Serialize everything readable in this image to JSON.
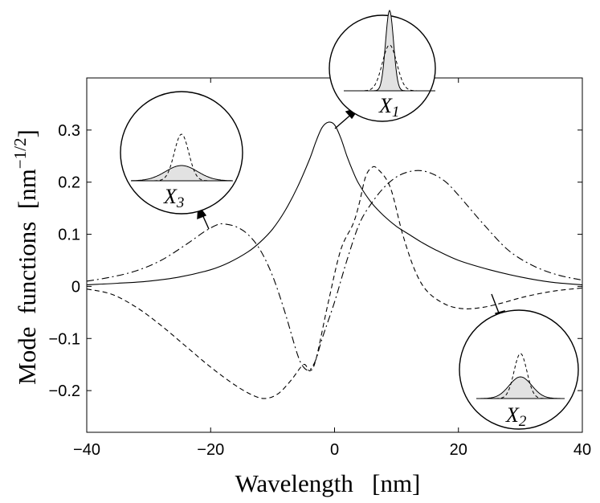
{
  "chart_data": {
    "type": "line",
    "xlabel": "Wavelength   [nm]",
    "ylabel_main": "Mode  functions  [nm",
    "ylabel_exp": "−1/2",
    "ylabel_close": "]",
    "xlim": [
      -40,
      40
    ],
    "ylim": [
      -0.28,
      0.4
    ],
    "grid": false,
    "x_ticks": [
      {
        "value": -40,
        "label": "−40"
      },
      {
        "value": -20,
        "label": "−20"
      },
      {
        "value": 0,
        "label": "0"
      },
      {
        "value": 20,
        "label": "20"
      },
      {
        "value": 40,
        "label": "40"
      }
    ],
    "y_ticks": [
      {
        "value": -0.2,
        "label": "−0.2"
      },
      {
        "value": -0.1,
        "label": "−0.1"
      },
      {
        "value": 0,
        "label": "0"
      },
      {
        "value": 0.1,
        "label": "0.1"
      },
      {
        "value": 0.2,
        "label": "0.2"
      },
      {
        "value": 0.3,
        "label": "0.3"
      }
    ],
    "series": [
      {
        "style": "solid",
        "x": [
          -40,
          -35,
          -30,
          -25,
          -20,
          -17,
          -14,
          -12,
          -10,
          -8,
          -6,
          -4,
          -3,
          -2,
          -1,
          0,
          1,
          2,
          3,
          4,
          6,
          8,
          10,
          12,
          14,
          16,
          20,
          25,
          30,
          35,
          40
        ],
        "y": [
          0.003,
          0.006,
          0.01,
          0.018,
          0.032,
          0.046,
          0.066,
          0.085,
          0.11,
          0.145,
          0.19,
          0.245,
          0.278,
          0.305,
          0.315,
          0.31,
          0.285,
          0.25,
          0.22,
          0.195,
          0.16,
          0.135,
          0.115,
          0.1,
          0.085,
          0.072,
          0.05,
          0.032,
          0.018,
          0.008,
          0.003
        ]
      },
      {
        "style": "dashed",
        "x": [
          -40,
          -36,
          -32,
          -28,
          -24,
          -20,
          -16,
          -13,
          -11,
          -9,
          -7,
          -5,
          -4,
          -3,
          -1,
          1,
          3,
          4,
          5,
          6,
          7,
          9,
          11,
          13,
          15,
          18,
          21,
          24,
          27,
          30,
          33,
          36,
          40
        ],
        "y": [
          -0.005,
          -0.015,
          -0.04,
          -0.075,
          -0.115,
          -0.155,
          -0.19,
          -0.21,
          -0.215,
          -0.205,
          -0.18,
          -0.15,
          -0.162,
          -0.14,
          -0.03,
          0.07,
          0.12,
          0.16,
          0.21,
          0.228,
          0.225,
          0.19,
          0.1,
          0.03,
          -0.01,
          -0.035,
          -0.043,
          -0.04,
          -0.032,
          -0.022,
          -0.014,
          -0.008,
          -0.003
        ]
      },
      {
        "style": "dash-dot",
        "x": [
          -40,
          -36,
          -32,
          -28,
          -24,
          -21,
          -19,
          -18,
          -16,
          -14,
          -12,
          -10,
          -8,
          -6,
          -5,
          -4,
          -3,
          -2,
          0,
          2,
          4,
          6,
          8,
          10,
          12,
          14,
          16,
          18,
          20,
          24,
          28,
          32,
          36,
          40
        ],
        "y": [
          0.01,
          0.018,
          0.03,
          0.05,
          0.08,
          0.105,
          0.118,
          0.12,
          0.115,
          0.1,
          0.07,
          0.02,
          -0.05,
          -0.13,
          -0.155,
          -0.16,
          -0.14,
          -0.1,
          -0.03,
          0.05,
          0.12,
          0.16,
          0.19,
          0.21,
          0.22,
          0.222,
          0.215,
          0.2,
          0.175,
          0.12,
          0.07,
          0.04,
          0.022,
          0.012
        ]
      }
    ],
    "insets": [
      {
        "name": "X1",
        "letter": "X",
        "sub": "1",
        "wide": "solid",
        "peak_scale": 1.0
      },
      {
        "name": "X2",
        "letter": "X",
        "sub": "2",
        "wide": "dashed",
        "peak_scale": 0.65
      },
      {
        "name": "X3",
        "letter": "X",
        "sub": "3",
        "wide": "dashed",
        "peak_scale": 0.35
      }
    ]
  }
}
